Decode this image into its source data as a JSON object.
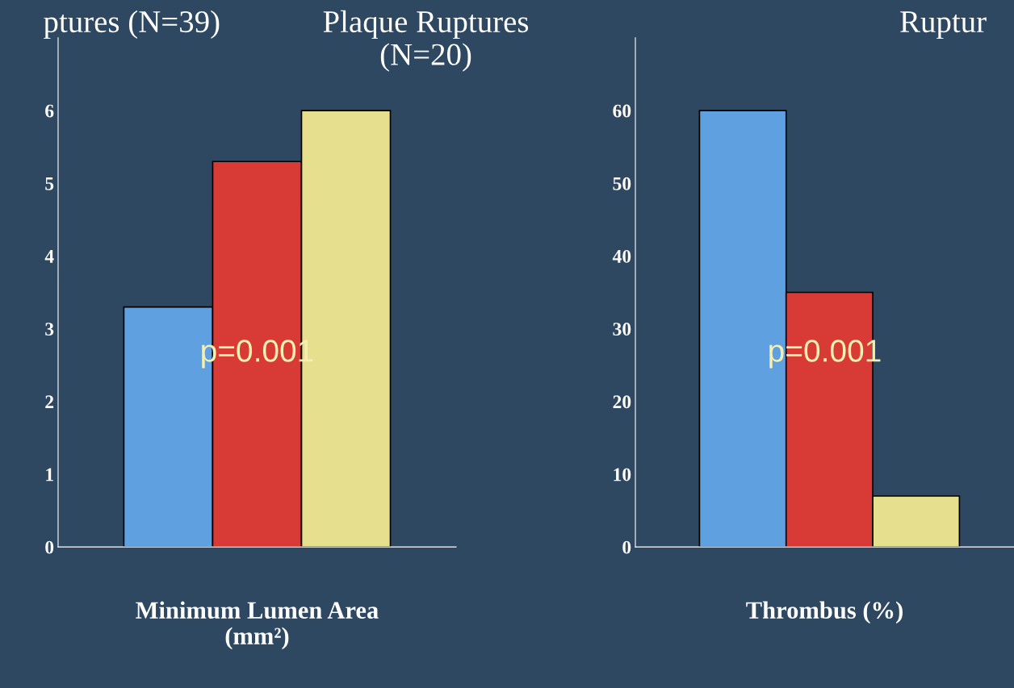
{
  "chart_data": [
    {
      "type": "bar",
      "categories": [
        null
      ],
      "xlabel": "Minimum Lumen Area\n(mm²)",
      "ylim": [
        0,
        7
      ],
      "yticks": [
        0,
        1,
        2,
        3,
        4,
        5,
        6
      ],
      "grid": false,
      "series": [
        {
          "color": "#5fa0e0",
          "values": [
            3.3
          ]
        },
        {
          "color": "#d83a36",
          "values": [
            5.3
          ]
        },
        {
          "color": "#e6df8e",
          "values": [
            6.0
          ]
        }
      ],
      "annotations": [
        "ptures (N=39)",
        "Plaque Ruptures\n(N=20)",
        "Ruptur",
        "p=0.001"
      ]
    },
    {
      "type": "bar",
      "categories": [
        null
      ],
      "xlabel": "Thrombus (%)",
      "ylim": [
        0,
        70
      ],
      "yticks": [
        0,
        10,
        20,
        30,
        40,
        50,
        60
      ],
      "grid": false,
      "series": [
        {
          "color": "#5fa0e0",
          "values": [
            60
          ]
        },
        {
          "color": "#d83a36",
          "values": [
            35
          ]
        },
        {
          "color": "#e6df8e",
          "values": [
            7
          ]
        }
      ],
      "annotations": [
        "p=0.001"
      ]
    }
  ]
}
